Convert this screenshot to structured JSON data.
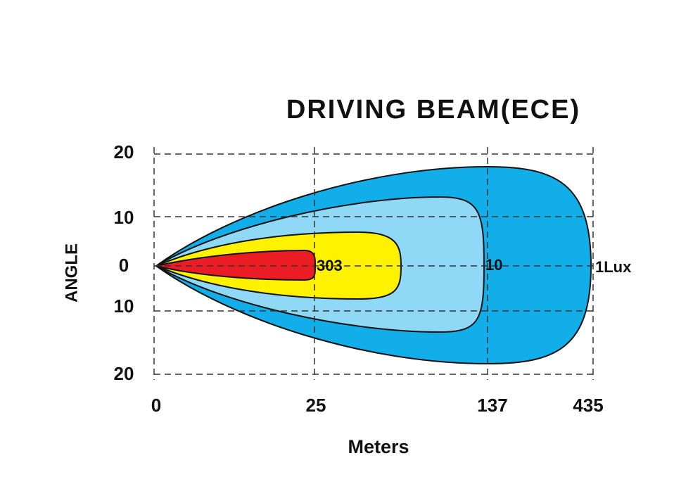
{
  "title": "DRIVING BEAM(ECE)",
  "axis": {
    "y_label": "ANGLE",
    "y_ticks": [
      "20",
      "10",
      "0",
      "10",
      "20"
    ],
    "x_label": "Meters",
    "x_ticks": [
      "0",
      "25",
      "137",
      "435"
    ]
  },
  "contours": [
    "303",
    "10",
    "1Lux"
  ]
}
